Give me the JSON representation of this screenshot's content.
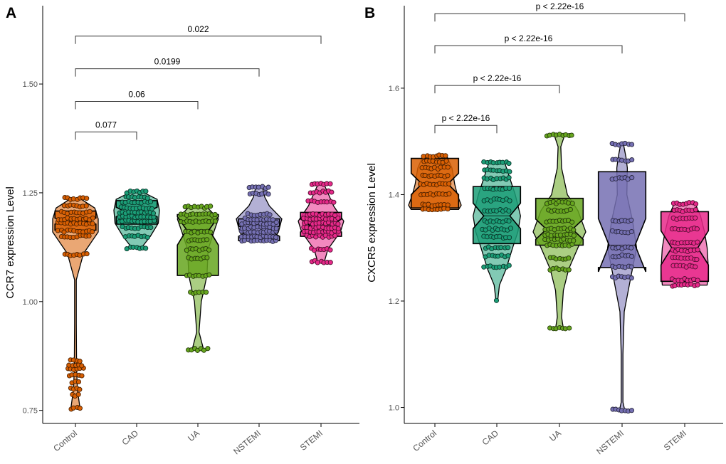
{
  "figure": {
    "panel_labels": [
      "A",
      "B"
    ]
  },
  "chart_data": [
    {
      "type": "violin-box",
      "panel": "A",
      "ylabel": "CCR7 expression Level",
      "xlabel": "",
      "ylim": [
        0.72,
        1.68
      ],
      "yticks": [
        0.75,
        1.0,
        1.25,
        1.5
      ],
      "ytick_labels": [
        "0.75",
        "1.00",
        "1.25",
        "1.50"
      ],
      "categories": [
        "Control",
        "CAD",
        "UA",
        "NSTEMI",
        "STEMI"
      ],
      "colors": [
        "#D95F02",
        "#1B9E77",
        "#66A61E",
        "#7570B3",
        "#E7298A"
      ],
      "box": {
        "q1": [
          1.164,
          1.178,
          1.06,
          1.14,
          1.15
        ],
        "median": [
          1.185,
          1.206,
          1.165,
          1.162,
          1.175
        ],
        "q3": [
          1.208,
          1.232,
          1.2,
          1.19,
          1.205
        ],
        "notch_low": [
          1.178,
          1.195,
          1.13,
          1.15,
          1.16
        ],
        "notch_high": [
          1.192,
          1.217,
          1.195,
          1.174,
          1.19
        ]
      },
      "violin_range": {
        "min": [
          0.755,
          1.123,
          0.89,
          1.14,
          1.092
        ],
        "max": [
          1.237,
          1.252,
          1.217,
          1.262,
          1.271
        ]
      },
      "comparisons": [
        {
          "group1": "Control",
          "group2": "CAD",
          "label": "0.077",
          "y": 1.39
        },
        {
          "group1": "Control",
          "group2": "UA",
          "label": "0.06",
          "y": 1.46
        },
        {
          "group1": "Control",
          "group2": "NSTEMI",
          "label": "0.0199",
          "y": 1.535
        },
        {
          "group1": "Control",
          "group2": "STEMI",
          "label": "0.022",
          "y": 1.61
        }
      ]
    },
    {
      "type": "violin-box",
      "panel": "B",
      "ylabel": "CXCR5 expression Level",
      "xlabel": "",
      "ylim": [
        0.97,
        1.755
      ],
      "yticks": [
        1.0,
        1.2,
        1.4,
        1.6
      ],
      "ytick_labels": [
        "1.0",
        "1.2",
        "1.4",
        "1.6"
      ],
      "categories": [
        "Control",
        "CAD",
        "UA",
        "NSTEMI",
        "STEMI"
      ],
      "colors": [
        "#D95F02",
        "#1B9E77",
        "#66A61E",
        "#7570B3",
        "#E7298A"
      ],
      "box": {
        "q1": [
          1.375,
          1.308,
          1.305,
          1.263,
          1.237
        ],
        "median": [
          1.42,
          1.36,
          1.335,
          1.305,
          1.3
        ],
        "q3": [
          1.468,
          1.415,
          1.393,
          1.443,
          1.368
        ],
        "notch_low": [
          1.4,
          1.336,
          1.316,
          1.255,
          1.268
        ],
        "notch_high": [
          1.44,
          1.384,
          1.354,
          1.355,
          1.332
        ]
      },
      "violin_range": {
        "min": [
          1.372,
          1.2,
          1.148,
          0.995,
          1.23
        ],
        "max": [
          1.473,
          1.46,
          1.512,
          1.495,
          1.383
        ]
      },
      "comparisons": [
        {
          "group1": "Control",
          "group2": "CAD",
          "label": "p < 2.22e-16",
          "y": 1.53
        },
        {
          "group1": "Control",
          "group2": "UA",
          "label": "p < 2.22e-16",
          "y": 1.605
        },
        {
          "group1": "Control",
          "group2": "NSTEMI",
          "label": "p < 2.22e-16",
          "y": 1.68
        },
        {
          "group1": "Control",
          "group2": "STEMI",
          "label": "p < 2.22e-16",
          "y": 1.74
        }
      ]
    }
  ]
}
